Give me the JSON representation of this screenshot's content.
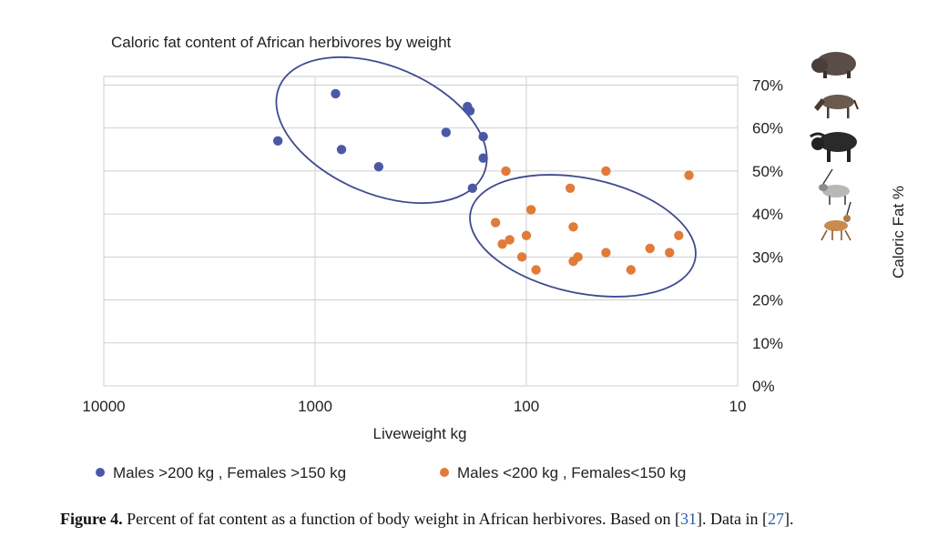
{
  "chart_data": {
    "type": "scatter",
    "title": "Caloric fat content of African herbivores by weight",
    "xlabel": "Liveweight kg",
    "ylabel": "Caloric Fat %",
    "x_scale": "log",
    "x_reversed": true,
    "x_ticks": [
      10000,
      1000,
      100,
      10
    ],
    "x_tick_labels": [
      "10000",
      "1000",
      "100",
      "10"
    ],
    "xlim": [
      10000,
      10
    ],
    "ylim": [
      0,
      72
    ],
    "y_ticks": [
      0,
      10,
      20,
      30,
      40,
      50,
      60,
      70
    ],
    "y_tick_labels": [
      "0%",
      "10%",
      "20%",
      "30%",
      "40%",
      "50%",
      "60%",
      "70%"
    ],
    "y_axis_side": "right",
    "grid": true,
    "legend_position": "bottom",
    "series": [
      {
        "name": "Males >200 kg  , Females >150 kg",
        "color": "#4a59a7",
        "points": [
          {
            "x": 800,
            "y": 68
          },
          {
            "x": 1500,
            "y": 57
          },
          {
            "x": 750,
            "y": 55
          },
          {
            "x": 500,
            "y": 51
          },
          {
            "x": 240,
            "y": 59
          },
          {
            "x": 190,
            "y": 65
          },
          {
            "x": 185,
            "y": 64
          },
          {
            "x": 160,
            "y": 58
          },
          {
            "x": 160,
            "y": 53
          },
          {
            "x": 180,
            "y": 46
          }
        ]
      },
      {
        "name": "Males <200 kg  , Females<150 kg",
        "color": "#e07b39",
        "points": [
          {
            "x": 125,
            "y": 50
          },
          {
            "x": 140,
            "y": 38
          },
          {
            "x": 130,
            "y": 33
          },
          {
            "x": 120,
            "y": 34
          },
          {
            "x": 105,
            "y": 30
          },
          {
            "x": 100,
            "y": 35
          },
          {
            "x": 95,
            "y": 41
          },
          {
            "x": 90,
            "y": 27
          },
          {
            "x": 62,
            "y": 46
          },
          {
            "x": 60,
            "y": 37
          },
          {
            "x": 60,
            "y": 29
          },
          {
            "x": 57,
            "y": 30
          },
          {
            "x": 42,
            "y": 50
          },
          {
            "x": 42,
            "y": 31
          },
          {
            "x": 32,
            "y": 27
          },
          {
            "x": 26,
            "y": 32
          },
          {
            "x": 21,
            "y": 31
          },
          {
            "x": 19,
            "y": 35
          },
          {
            "x": 17,
            "y": 49
          }
        ]
      }
    ],
    "icons": [
      "warthog-icon",
      "wildebeest-icon",
      "buffalo-icon",
      "oryx-icon",
      "gazelle-icon"
    ]
  },
  "caption": {
    "label": "Figure 4.",
    "text_before": " Percent of fat content as a function of body weight in African herbivores. Based on [",
    "ref1": "31",
    "text_middle": "]. Data in [",
    "ref2": "27",
    "text_after": "]."
  }
}
